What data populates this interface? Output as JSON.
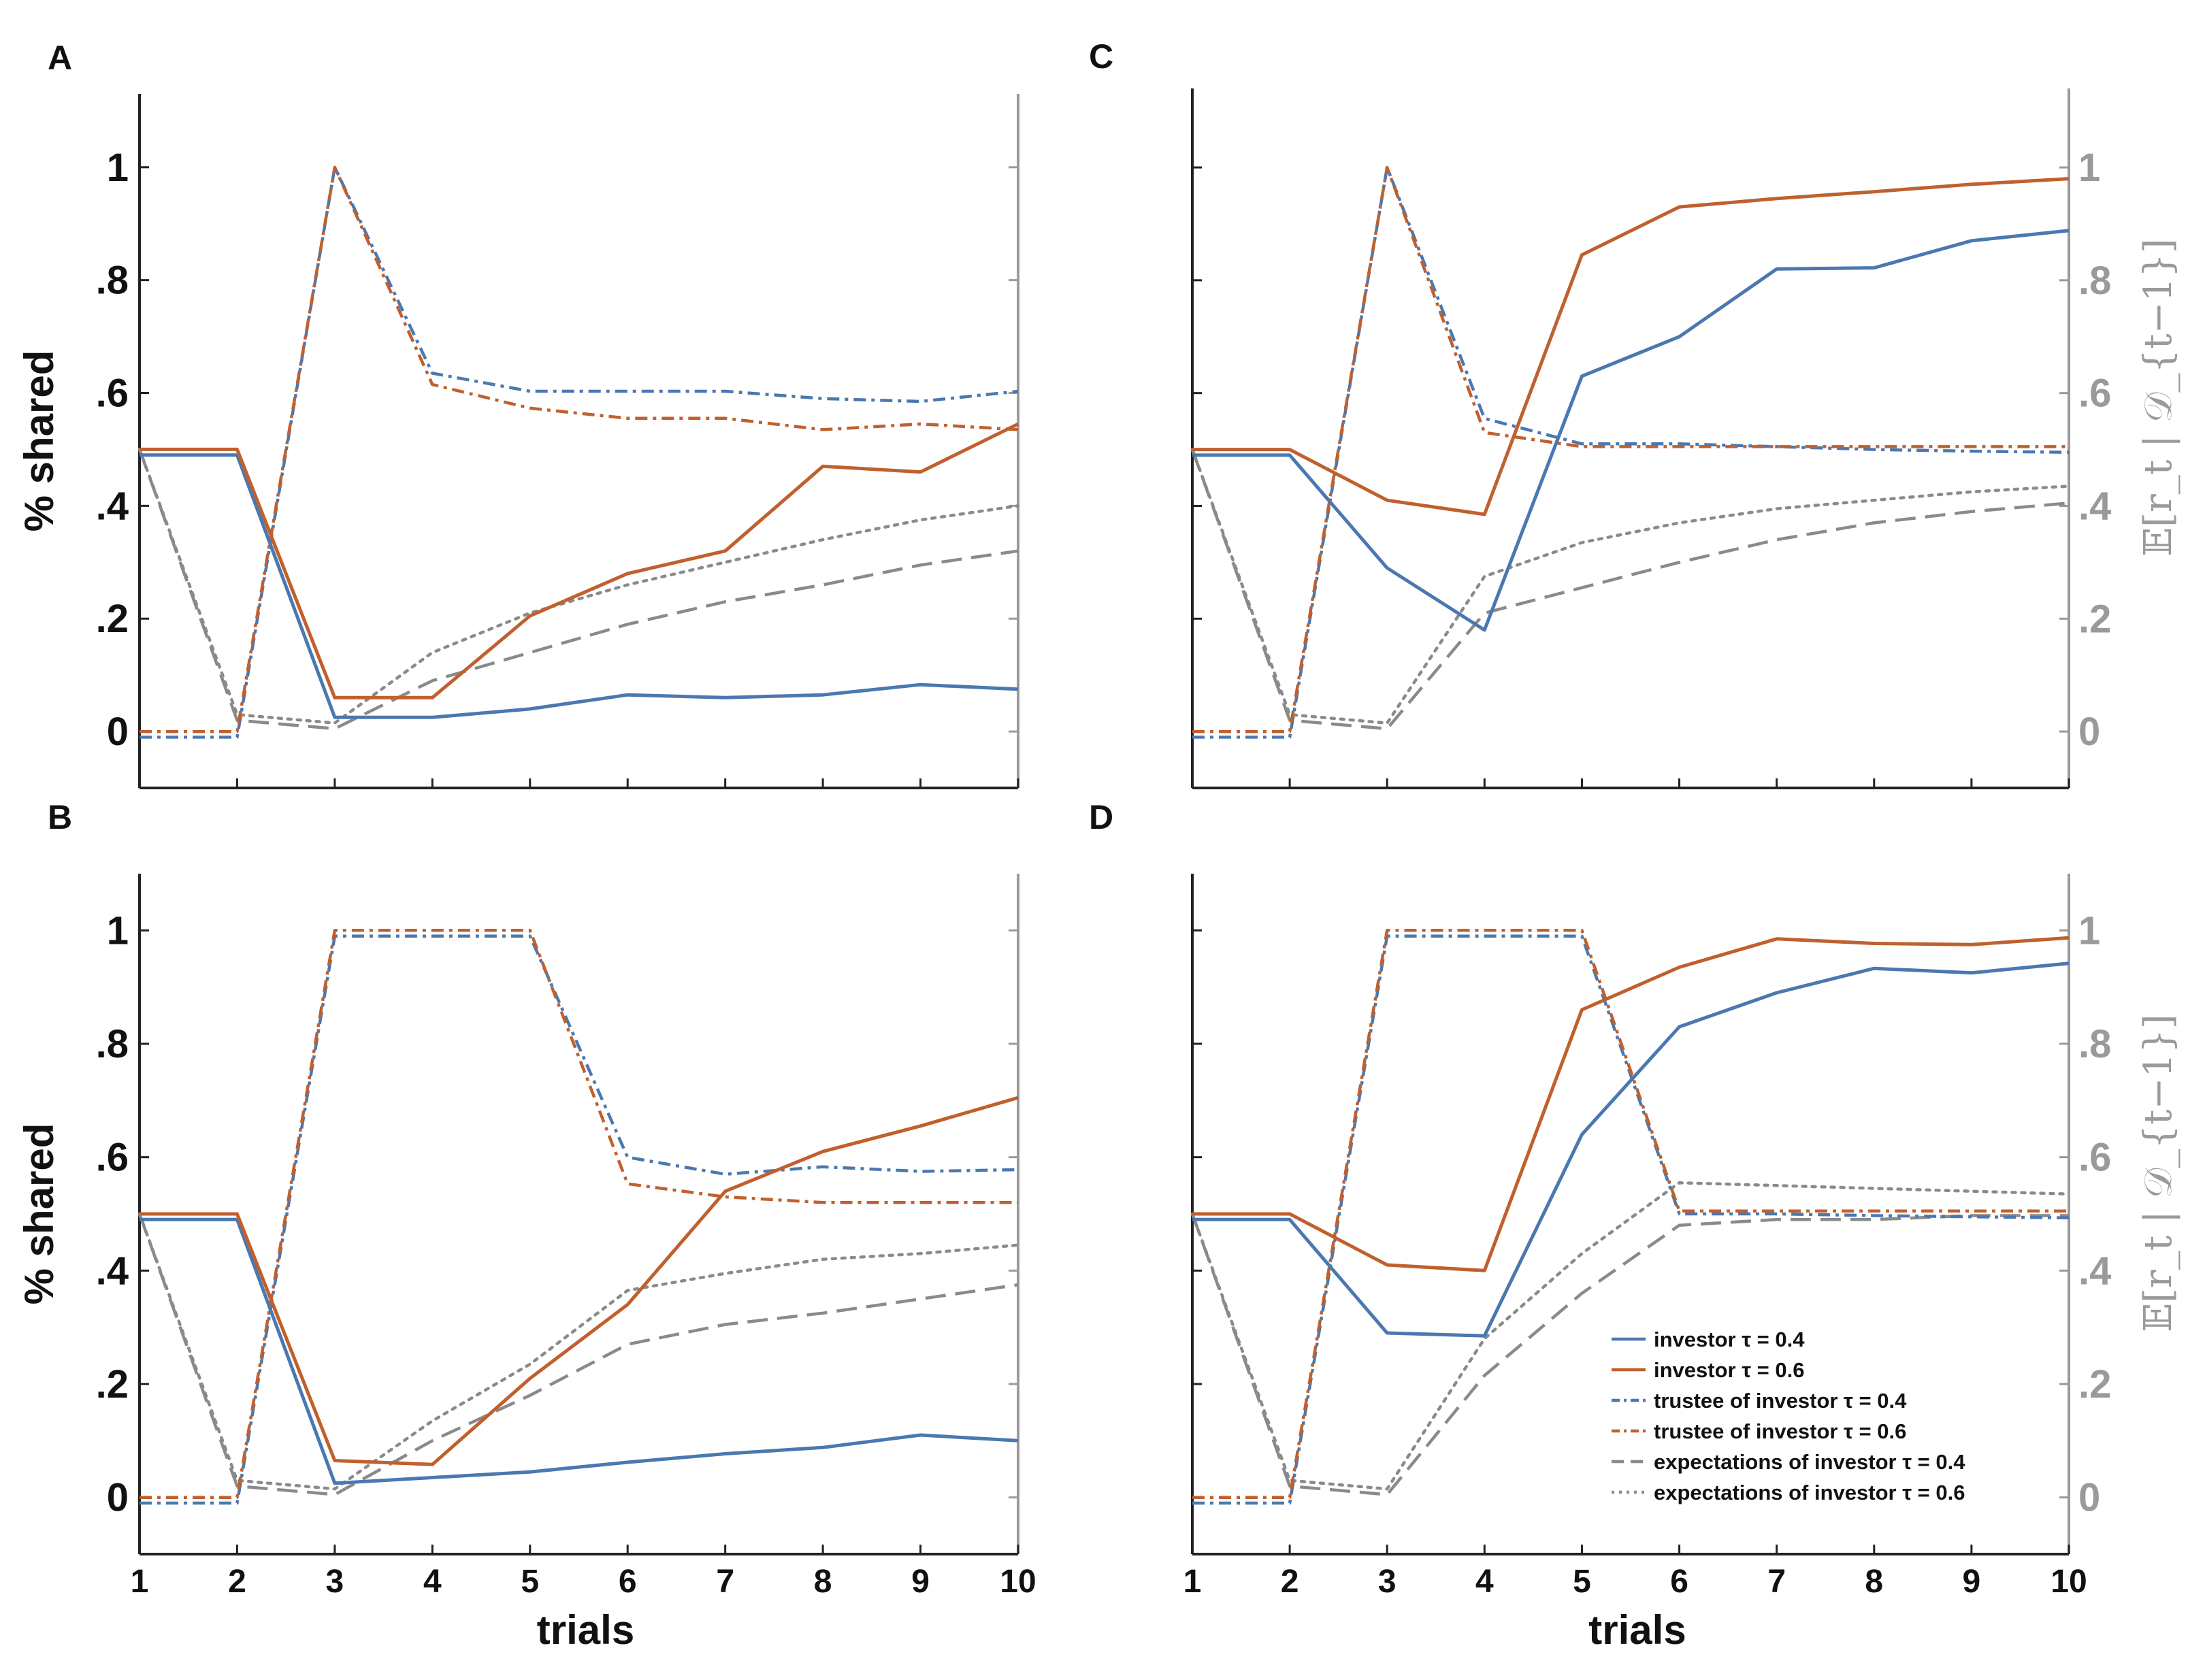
{
  "colors": {
    "investor_04": "#4a78b0",
    "investor_06": "#c0602e",
    "expectations": "#8a8a8a",
    "axis_left": "#111111",
    "axis_right": "#9a9a9a"
  },
  "legend": [
    {
      "label": "investor τ = 0.4",
      "color": "#4a78b0",
      "style": "solid"
    },
    {
      "label": "investor τ = 0.6",
      "color": "#c0602e",
      "style": "solid"
    },
    {
      "label": "trustee of investor τ = 0.4",
      "color": "#4a78b0",
      "style": "dashdot"
    },
    {
      "label": "trustee of investor τ = 0.6",
      "color": "#c0602e",
      "style": "dashdot"
    },
    {
      "label": "expectations of investor τ = 0.4",
      "color": "#8a8a8a",
      "style": "dashed"
    },
    {
      "label": "expectations of investor τ = 0.6",
      "color": "#8a8a8a",
      "style": "dotted"
    }
  ],
  "chart_data": [
    {
      "panel": "A",
      "type": "line",
      "x": [
        1,
        2,
        3,
        4,
        5,
        6,
        7,
        8,
        9,
        10
      ],
      "xlim": [
        1,
        10
      ],
      "ylim": [
        -0.1,
        1.13
      ],
      "xlabel": "",
      "ylabel": "% shared",
      "right_axis": false,
      "yticks": [
        "0",
        ".2",
        ".4",
        ".6",
        ".8",
        "1"
      ],
      "xticks": [],
      "series": [
        {
          "name": "investor τ = 0.4",
          "style": "solid",
          "color": "#4a78b0",
          "values": [
            0.49,
            0.49,
            0.025,
            0.025,
            0.04,
            0.065,
            0.06,
            0.065,
            0.083,
            0.075
          ]
        },
        {
          "name": "investor τ = 0.6",
          "style": "solid",
          "color": "#c0602e",
          "values": [
            0.5,
            0.5,
            0.06,
            0.06,
            0.205,
            0.28,
            0.32,
            0.47,
            0.46,
            0.545
          ]
        },
        {
          "name": "trustee of investor τ = 0.4",
          "style": "dashdot",
          "color": "#4a78b0",
          "values": [
            -0.01,
            -0.01,
            1.0,
            0.635,
            0.603,
            0.603,
            0.603,
            0.59,
            0.585,
            0.603
          ]
        },
        {
          "name": "trustee of investor τ = 0.6",
          "style": "dashdot",
          "color": "#c0602e",
          "values": [
            0.0,
            0.0,
            1.0,
            0.615,
            0.573,
            0.555,
            0.555,
            0.535,
            0.545,
            0.535
          ]
        },
        {
          "name": "expectations of investor τ = 0.4",
          "style": "dashed",
          "color": "#8a8a8a",
          "values": [
            0.5,
            0.02,
            0.005,
            0.09,
            0.14,
            0.19,
            0.23,
            0.26,
            0.295,
            0.32
          ]
        },
        {
          "name": "expectations of investor τ = 0.6",
          "style": "dotted",
          "color": "#8a8a8a",
          "values": [
            0.5,
            0.03,
            0.015,
            0.14,
            0.21,
            0.26,
            0.3,
            0.34,
            0.375,
            0.4
          ]
        }
      ]
    },
    {
      "panel": "B",
      "type": "line",
      "x": [
        1,
        2,
        3,
        4,
        5,
        6,
        7,
        8,
        9,
        10
      ],
      "xlim": [
        1,
        10
      ],
      "ylim": [
        -0.1,
        1.1
      ],
      "xlabel": "trials",
      "ylabel": "% shared",
      "right_axis": false,
      "yticks": [
        "0",
        ".2",
        ".4",
        ".6",
        ".8",
        "1"
      ],
      "xticks": [
        "1",
        "2",
        "3",
        "4",
        "5",
        "6",
        "7",
        "8",
        "9",
        "10"
      ],
      "series": [
        {
          "name": "investor τ = 0.4",
          "style": "solid",
          "color": "#4a78b0",
          "values": [
            0.49,
            0.49,
            0.025,
            0.035,
            0.045,
            0.062,
            0.077,
            0.088,
            0.11,
            0.1
          ]
        },
        {
          "name": "investor τ = 0.6",
          "style": "solid",
          "color": "#c0602e",
          "values": [
            0.5,
            0.5,
            0.065,
            0.058,
            0.21,
            0.34,
            0.54,
            0.61,
            0.655,
            0.705
          ]
        },
        {
          "name": "trustee of investor τ = 0.4",
          "style": "dashdot",
          "color": "#4a78b0",
          "values": [
            -0.01,
            -0.01,
            0.99,
            0.99,
            0.99,
            0.6,
            0.57,
            0.583,
            0.575,
            0.578
          ]
        },
        {
          "name": "trustee of investor τ = 0.6",
          "style": "dashdot",
          "color": "#c0602e",
          "values": [
            0.0,
            0.0,
            1.0,
            1.0,
            1.0,
            0.553,
            0.53,
            0.52,
            0.52,
            0.52
          ]
        },
        {
          "name": "expectations of investor τ = 0.4",
          "style": "dashed",
          "color": "#8a8a8a",
          "values": [
            0.5,
            0.02,
            0.005,
            0.1,
            0.18,
            0.27,
            0.305,
            0.325,
            0.35,
            0.375
          ]
        },
        {
          "name": "expectations of investor τ = 0.6",
          "style": "dotted",
          "color": "#8a8a8a",
          "values": [
            0.5,
            0.03,
            0.015,
            0.135,
            0.235,
            0.365,
            0.395,
            0.42,
            0.43,
            0.445
          ]
        }
      ]
    },
    {
      "panel": "C",
      "type": "line",
      "x": [
        1,
        2,
        3,
        4,
        5,
        6,
        7,
        8,
        9,
        10
      ],
      "xlim": [
        1,
        10
      ],
      "ylim": [
        -0.1,
        1.14
      ],
      "xlabel": "",
      "ylabel": "",
      "right_axis": true,
      "right_label": "𝔼[r_t | 𝒟_{t−1}]",
      "yticks": [
        "0",
        ".2",
        ".4",
        ".6",
        ".8",
        "1"
      ],
      "xticks": [],
      "series": [
        {
          "name": "investor τ = 0.4",
          "style": "solid",
          "color": "#4a78b0",
          "values": [
            0.49,
            0.49,
            0.29,
            0.18,
            0.63,
            0.7,
            0.82,
            0.822,
            0.87,
            0.888
          ]
        },
        {
          "name": "investor τ = 0.6",
          "style": "solid",
          "color": "#c0602e",
          "values": [
            0.5,
            0.5,
            0.41,
            0.385,
            0.845,
            0.93,
            0.945,
            0.957,
            0.97,
            0.98
          ]
        },
        {
          "name": "trustee of investor τ = 0.4",
          "style": "dashdot",
          "color": "#4a78b0",
          "values": [
            -0.01,
            -0.01,
            1.0,
            0.555,
            0.51,
            0.51,
            0.505,
            0.5,
            0.497,
            0.495
          ]
        },
        {
          "name": "trustee of investor τ = 0.6",
          "style": "dashdot",
          "color": "#c0602e",
          "values": [
            0.0,
            0.0,
            1.0,
            0.53,
            0.505,
            0.505,
            0.505,
            0.505,
            0.505,
            0.505
          ]
        },
        {
          "name": "expectations of investor τ = 0.4",
          "style": "dashed",
          "color": "#8a8a8a",
          "values": [
            0.5,
            0.02,
            0.005,
            0.21,
            0.255,
            0.3,
            0.34,
            0.37,
            0.39,
            0.405
          ]
        },
        {
          "name": "expectations of investor τ = 0.6",
          "style": "dotted",
          "color": "#8a8a8a",
          "values": [
            0.5,
            0.03,
            0.015,
            0.275,
            0.335,
            0.37,
            0.395,
            0.41,
            0.425,
            0.435
          ]
        }
      ]
    },
    {
      "panel": "D",
      "type": "line",
      "x": [
        1,
        2,
        3,
        4,
        5,
        6,
        7,
        8,
        9,
        10
      ],
      "xlim": [
        1,
        10
      ],
      "ylim": [
        -0.1,
        1.1
      ],
      "xlabel": "trials",
      "ylabel": "",
      "right_axis": true,
      "right_label": "𝔼[r_t | 𝒟_{t−1}]",
      "yticks": [
        "0",
        ".2",
        ".4",
        ".6",
        ".8",
        "1"
      ],
      "xticks": [
        "1",
        "2",
        "3",
        "4",
        "5",
        "6",
        "7",
        "8",
        "9",
        "10"
      ],
      "series": [
        {
          "name": "investor τ = 0.4",
          "style": "solid",
          "color": "#4a78b0",
          "values": [
            0.49,
            0.49,
            0.29,
            0.285,
            0.64,
            0.83,
            0.89,
            0.933,
            0.925,
            0.942
          ]
        },
        {
          "name": "investor τ = 0.6",
          "style": "solid",
          "color": "#c0602e",
          "values": [
            0.5,
            0.5,
            0.41,
            0.4,
            0.86,
            0.935,
            0.985,
            0.977,
            0.975,
            0.987
          ]
        },
        {
          "name": "trustee of investor τ = 0.4",
          "style": "dashdot",
          "color": "#4a78b0",
          "values": [
            -0.01,
            -0.01,
            0.99,
            0.99,
            0.99,
            0.5,
            0.5,
            0.497,
            0.495,
            0.493
          ]
        },
        {
          "name": "trustee of investor τ = 0.6",
          "style": "dashdot",
          "color": "#c0602e",
          "values": [
            0.0,
            0.0,
            1.0,
            1.0,
            1.0,
            0.505,
            0.505,
            0.505,
            0.505,
            0.505
          ]
        },
        {
          "name": "expectations of investor τ = 0.4",
          "style": "dashed",
          "color": "#8a8a8a",
          "values": [
            0.5,
            0.02,
            0.005,
            0.215,
            0.36,
            0.48,
            0.49,
            0.49,
            0.497,
            0.497
          ]
        },
        {
          "name": "expectations of investor τ = 0.6",
          "style": "dotted",
          "color": "#8a8a8a",
          "values": [
            0.5,
            0.03,
            0.015,
            0.28,
            0.43,
            0.555,
            0.55,
            0.545,
            0.54,
            0.535
          ]
        }
      ]
    }
  ]
}
